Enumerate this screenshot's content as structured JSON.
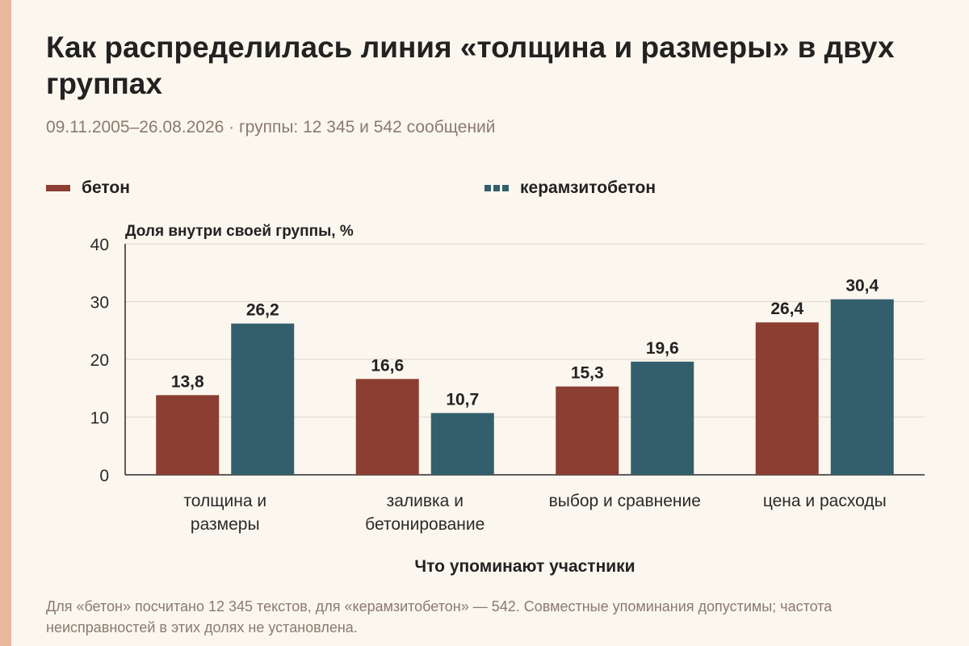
{
  "title": "Как распределилась линия «толщина и размеры» в двух группах",
  "subtitle": "09.11.2005–26.08.2026 · группы: 12 345 и 542 сообщений",
  "footnote": "Для «бетон» посчитано 12 345 текстов, для «керамзитобетон» — 542. Совместные упоминания допустимы; частота неисправностей в этих долях не установлена.",
  "colors": {
    "background": "#fbf6ee",
    "accent": "#e9b99f",
    "beton": "#8b3e31",
    "keramzit": "#335e6b"
  },
  "chart_data": {
    "type": "bar",
    "ylabel": "Доля внутри своей группы, %",
    "xlabel": "Что упоминают участники",
    "ylim": [
      0,
      40
    ],
    "yticks": [
      0,
      10,
      20,
      30,
      40
    ],
    "grid": true,
    "legend_position": "top-left",
    "categories": [
      [
        "толщина и",
        "размеры"
      ],
      [
        "заливка и",
        "бетонирование"
      ],
      [
        "выбор и сравнение"
      ],
      [
        "цена и расходы"
      ]
    ],
    "series": [
      {
        "name": "бетон",
        "color": "#8b3e31",
        "values": [
          13.8,
          16.6,
          15.3,
          26.4
        ],
        "labels": [
          "13,8",
          "16,6",
          "15,3",
          "26,4"
        ]
      },
      {
        "name": "керамзитобетон",
        "color": "#335e6b",
        "legend_style": "dashed",
        "values": [
          26.2,
          10.7,
          19.6,
          30.4
        ],
        "labels": [
          "26,2",
          "10,7",
          "19,6",
          "30,4"
        ]
      }
    ]
  }
}
